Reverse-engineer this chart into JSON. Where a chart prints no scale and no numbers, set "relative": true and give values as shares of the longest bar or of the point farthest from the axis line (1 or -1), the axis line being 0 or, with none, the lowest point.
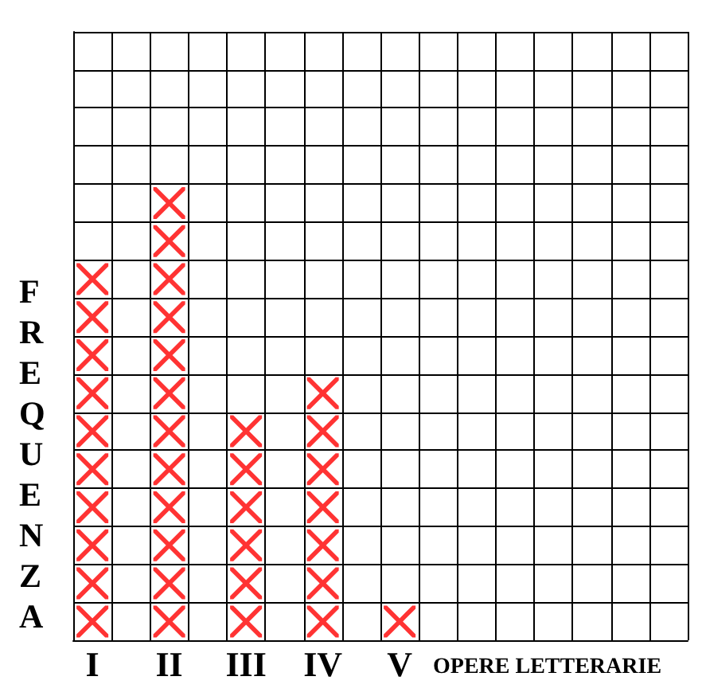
{
  "chart_data": {
    "type": "scatter",
    "xlabel": "OPERE LETTERARIE",
    "ylabel": "FREQUENZA",
    "categories": [
      "I",
      null,
      "II",
      null,
      "III",
      null,
      "IV",
      null,
      "V",
      null,
      null,
      null,
      null,
      null,
      null,
      null
    ],
    "series": [
      {
        "color": "#ff0000",
        "x": [
          "I",
          "I",
          "I",
          "I",
          "I",
          "I",
          "I",
          "I",
          "I",
          "I",
          "II",
          "II",
          "II",
          "II",
          "II",
          "II",
          "II",
          "II",
          "II",
          "II",
          "II",
          "II",
          "III",
          "III",
          "III",
          "III",
          "III",
          "III",
          "IV",
          "IV",
          "IV",
          "IV",
          "IV",
          "IV",
          "IV",
          "V"
        ],
        "values": [
          0.043,
          0.13,
          0.217,
          0.304,
          0.391,
          0.478,
          0.565,
          0.652,
          0.739,
          0.826,
          0.043,
          0.13,
          0.217,
          0.304,
          0.391,
          0.478,
          0.565,
          0.652,
          0.739,
          0.826,
          0.913,
          1,
          0.043,
          0.13,
          0.217,
          0.304,
          0.391,
          0.478,
          0.043,
          0.13,
          0.217,
          0.304,
          0.391,
          0.478,
          0.565,
          0.043
        ]
      }
    ],
    "relative": true,
    "tick_labels": "x",
    "grid": true,
    "marker": "cross"
  }
}
